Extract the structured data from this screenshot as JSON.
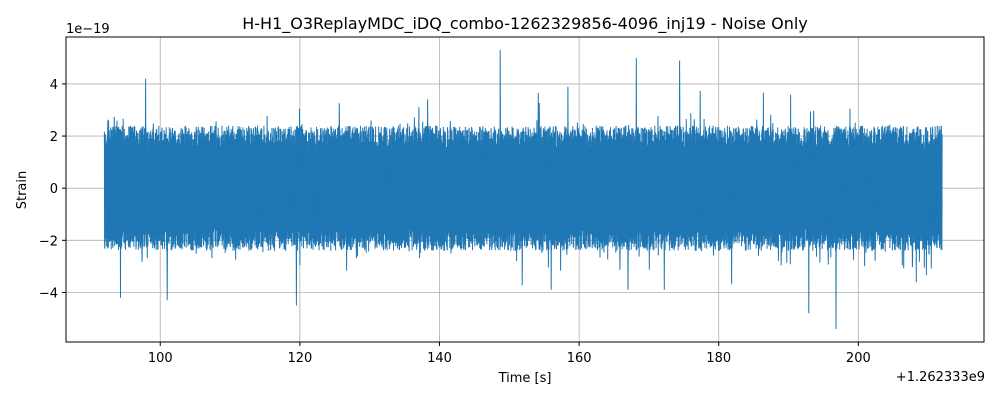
{
  "chart_data": {
    "type": "line",
    "title": "H-H1_O3ReplayMDC_iDQ_combo-1262329856-4096_inj19 - Noise Only",
    "xlabel": "Time [s]",
    "ylabel": "Strain",
    "x_offset_label": "+1.262333e9",
    "y_scale_label": "1e−19",
    "xlim": [
      86.5,
      218
    ],
    "ylim": [
      -5.9,
      5.8
    ],
    "x_ticks": [
      100,
      120,
      140,
      160,
      180,
      200
    ],
    "x_tick_labels": [
      "100",
      "120",
      "140",
      "160",
      "180",
      "200"
    ],
    "y_ticks": [
      -4,
      -2,
      0,
      2,
      4
    ],
    "y_tick_labels": [
      "−4",
      "−2",
      "0",
      "2",
      "4"
    ],
    "grid": true,
    "series_color": "#1f77b4",
    "series": [
      {
        "x_range": [
          92,
          212
        ],
        "amplitude_range": [
          -5.4,
          5.3
        ],
        "peaks": [
          {
            "x": 97.9,
            "y": 4.2
          },
          {
            "x": 148.7,
            "y": 5.3
          },
          {
            "x": 168.2,
            "y": 5.0
          },
          {
            "x": 174.4,
            "y": 4.9
          },
          {
            "x": 196.8,
            "y": -5.4
          },
          {
            "x": 192.9,
            "y": -4.8
          },
          {
            "x": 119.5,
            "y": -4.5
          },
          {
            "x": 101.0,
            "y": -4.3
          },
          {
            "x": 94.3,
            "y": -4.2
          }
        ]
      }
    ]
  }
}
